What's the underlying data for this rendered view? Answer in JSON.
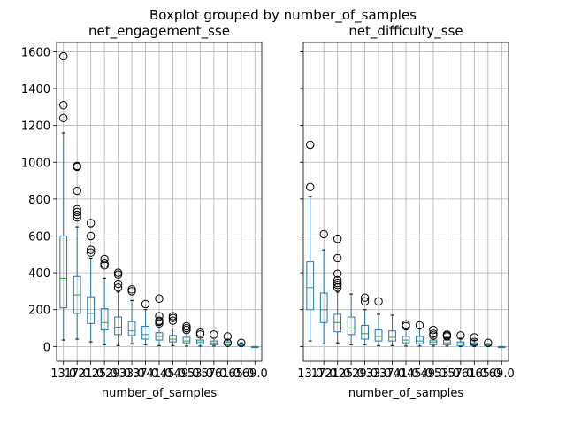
{
  "figure": {
    "suptitle": "Boxplot grouped by number_of_samples",
    "colors": {
      "box": "#1f77b4",
      "median": "#2ca02c",
      "flier": "#000000",
      "grid": "#b0b0b0"
    }
  },
  "chart_data": [
    {
      "type": "box",
      "title": "net_engagement_sse",
      "xlabel": "number_of_samples",
      "ylabel": "",
      "ylim": [
        -80,
        1650
      ],
      "yticks": [
        0,
        200,
        400,
        600,
        800,
        1000,
        1200,
        1400,
        1600
      ],
      "ytick_labels": [
        "0",
        "200",
        "400",
        "600",
        "800",
        "1000",
        "1200",
        "1400",
        "1600"
      ],
      "grid": true,
      "categories": [
        "13.0",
        "17.0",
        "21.0",
        "25.0",
        "29.0",
        "33.0",
        "37.0",
        "41.0",
        "45.0",
        "49.0",
        "53.0",
        "57.0",
        "61.0",
        "65.0",
        "69.0"
      ],
      "boxes": [
        {
          "whislo": 35,
          "q1": 210,
          "med": 370,
          "q3": 600,
          "whishi": 1160,
          "fliers": [
            1240,
            1310,
            1575
          ]
        },
        {
          "whislo": 40,
          "q1": 180,
          "med": 280,
          "q3": 380,
          "whishi": 650,
          "fliers": [
            700,
            715,
            730,
            745,
            845,
            975,
            980
          ]
        },
        {
          "whislo": 25,
          "q1": 125,
          "med": 180,
          "q3": 270,
          "whishi": 480,
          "fliers": [
            510,
            525,
            600,
            670
          ]
        },
        {
          "whislo": 10,
          "q1": 90,
          "med": 130,
          "q3": 205,
          "whishi": 370,
          "fliers": [
            440,
            450,
            475
          ]
        },
        {
          "whislo": 5,
          "q1": 65,
          "med": 105,
          "q3": 160,
          "whishi": 295,
          "fliers": [
            320,
            340,
            390,
            400
          ]
        },
        {
          "whislo": 15,
          "q1": 60,
          "med": 85,
          "q3": 135,
          "whishi": 250,
          "fliers": [
            300,
            310
          ]
        },
        {
          "whislo": 10,
          "q1": 40,
          "med": 65,
          "q3": 110,
          "whishi": 200,
          "fliers": [
            230
          ]
        },
        {
          "whislo": 5,
          "q1": 35,
          "med": 55,
          "q3": 75,
          "whishi": 115,
          "fliers": [
            125,
            135,
            140,
            165,
            260
          ]
        },
        {
          "whislo": 5,
          "q1": 25,
          "med": 40,
          "q3": 60,
          "whishi": 100,
          "fliers": [
            140,
            155,
            165
          ]
        },
        {
          "whislo": 2,
          "q1": 20,
          "med": 30,
          "q3": 50,
          "whishi": 80,
          "fliers": [
            90,
            100,
            110
          ]
        },
        {
          "whislo": 2,
          "q1": 15,
          "med": 25,
          "q3": 35,
          "whishi": 55,
          "fliers": [
            65,
            75
          ]
        },
        {
          "whislo": 2,
          "q1": 10,
          "med": 20,
          "q3": 30,
          "whishi": 45,
          "fliers": [
            65
          ]
        },
        {
          "whislo": 0,
          "q1": 10,
          "med": 15,
          "q3": 25,
          "whishi": 40,
          "fliers": [
            20,
            55
          ]
        },
        {
          "whislo": 0,
          "q1": 5,
          "med": 10,
          "q3": 15,
          "whishi": 20,
          "fliers": [
            20
          ]
        },
        {
          "whislo": -5,
          "q1": -3,
          "med": -2,
          "q3": -1,
          "whishi": 0,
          "fliers": []
        }
      ]
    },
    {
      "type": "box",
      "title": "net_difficulty_sse",
      "xlabel": "number_of_samples",
      "ylabel": "",
      "ylim": [
        -80,
        1650
      ],
      "grid": true,
      "categories": [
        "13.0",
        "17.0",
        "21.0",
        "25.0",
        "29.0",
        "33.0",
        "37.0",
        "41.0",
        "45.0",
        "49.0",
        "53.0",
        "57.0",
        "61.0",
        "65.0",
        "69.0"
      ],
      "boxes": [
        {
          "whislo": 30,
          "q1": 200,
          "med": 320,
          "q3": 460,
          "whishi": 815,
          "fliers": [
            865,
            1095
          ]
        },
        {
          "whislo": 15,
          "q1": 130,
          "med": 200,
          "q3": 290,
          "whishi": 525,
          "fliers": [
            610
          ]
        },
        {
          "whislo": 20,
          "q1": 80,
          "med": 130,
          "q3": 175,
          "whishi": 295,
          "fliers": [
            320,
            335,
            345,
            360,
            395,
            480,
            585
          ]
        },
        {
          "whislo": 10,
          "q1": 65,
          "med": 100,
          "q3": 160,
          "whishi": 285,
          "fliers": []
        },
        {
          "whislo": 10,
          "q1": 40,
          "med": 70,
          "q3": 115,
          "whishi": 200,
          "fliers": [
            245,
            265
          ]
        },
        {
          "whislo": 5,
          "q1": 30,
          "med": 55,
          "q3": 90,
          "whishi": 175,
          "fliers": [
            245
          ]
        },
        {
          "whislo": 5,
          "q1": 30,
          "med": 50,
          "q3": 85,
          "whishi": 170,
          "fliers": []
        },
        {
          "whislo": 2,
          "q1": 20,
          "med": 35,
          "q3": 55,
          "whishi": 95,
          "fliers": [
            110,
            120
          ]
        },
        {
          "whislo": 2,
          "q1": 15,
          "med": 30,
          "q3": 55,
          "whishi": 95,
          "fliers": [
            115
          ]
        },
        {
          "whislo": 2,
          "q1": 10,
          "med": 25,
          "q3": 35,
          "whishi": 55,
          "fliers": [
            60,
            70,
            90
          ]
        },
        {
          "whislo": 2,
          "q1": 10,
          "med": 20,
          "q3": 35,
          "whishi": 50,
          "fliers": [
            55,
            60,
            65
          ]
        },
        {
          "whislo": 0,
          "q1": 5,
          "med": 15,
          "q3": 25,
          "whishi": 45,
          "fliers": [
            60
          ]
        },
        {
          "whislo": 0,
          "q1": 5,
          "med": 10,
          "q3": 20,
          "whishi": 35,
          "fliers": [
            25,
            50
          ]
        },
        {
          "whislo": 0,
          "q1": 3,
          "med": 5,
          "q3": 10,
          "whishi": 15,
          "fliers": [
            20
          ]
        },
        {
          "whislo": -5,
          "q1": -3,
          "med": -2,
          "q3": -1,
          "whishi": 0,
          "fliers": []
        }
      ]
    }
  ]
}
